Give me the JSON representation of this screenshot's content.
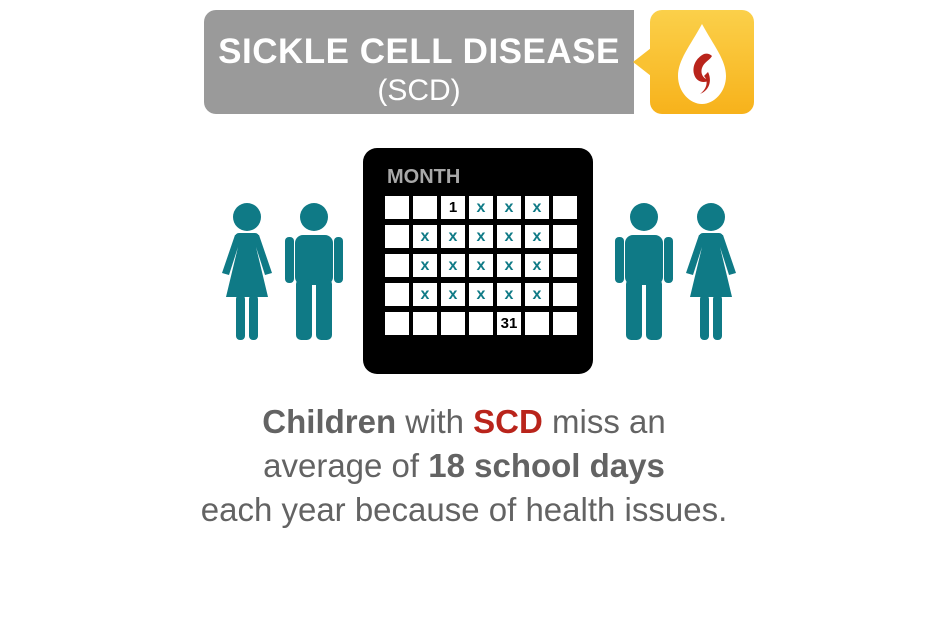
{
  "banner": {
    "title": "SICKLE CELL DISEASE",
    "subtitle": "(SCD)"
  },
  "logo": {
    "icon": "blood-drop-icon"
  },
  "calendar": {
    "title": "MONTH",
    "rows": [
      [
        "",
        "",
        "1",
        "x",
        "x",
        "x",
        ""
      ],
      [
        "",
        "x",
        "x",
        "x",
        "x",
        "x",
        ""
      ],
      [
        "",
        "x",
        "x",
        "x",
        "x",
        "x",
        ""
      ],
      [
        "",
        "x",
        "x",
        "x",
        "x",
        "x",
        ""
      ],
      [
        "",
        "",
        "",
        "",
        "31",
        "",
        ""
      ]
    ]
  },
  "people": {
    "icon": "person-icon",
    "color": "#0f7a86"
  },
  "message": {
    "line1": {
      "children": "Children",
      "with": " with ",
      "scd": "SCD",
      "miss": " miss an"
    },
    "line2": {
      "average": "average of ",
      "days": "18 school days"
    },
    "line3": "each year because of health issues."
  },
  "colors": {
    "teal": "#0f7a86",
    "red": "#b9241b",
    "gray": "#9a9a9a",
    "gold": "#f7b21b"
  }
}
